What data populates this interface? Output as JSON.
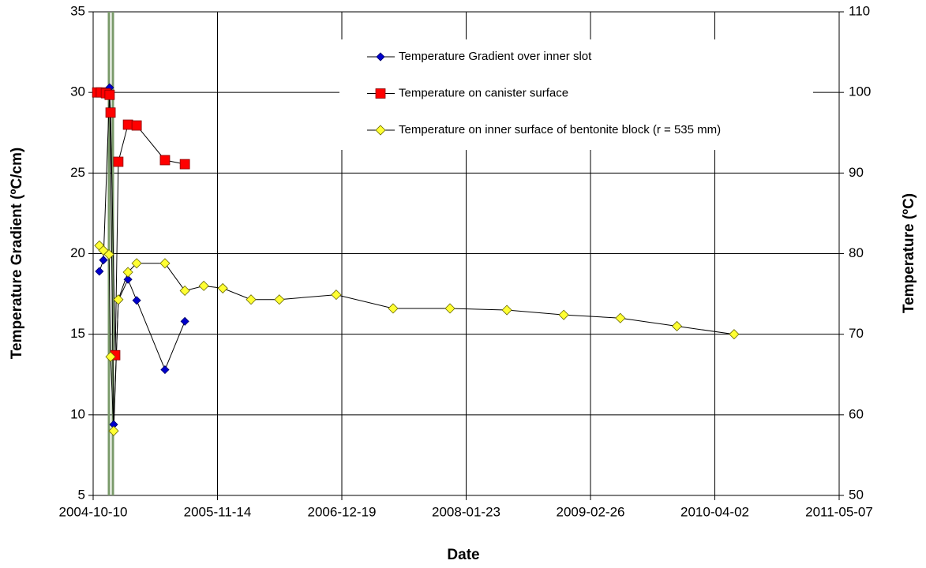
{
  "chart_data": {
    "type": "line",
    "x_label": "Date",
    "y_label": "Temperature Gradient (ºC/cm)",
    "y2_label": "Temperature (ºC)",
    "xlim": [
      "2004-10-10",
      "2011-05-07"
    ],
    "xticks": [
      "2004-10-10",
      "2005-11-14",
      "2006-12-19",
      "2008-01-23",
      "2009-02-26",
      "2010-04-02",
      "2011-05-07"
    ],
    "ylim": [
      5,
      35
    ],
    "yticks": [
      5,
      10,
      15,
      20,
      25,
      30,
      35
    ],
    "y2lim": [
      50,
      110
    ],
    "y2ticks": [
      50,
      60,
      70,
      80,
      90,
      100,
      110
    ],
    "grid": true,
    "legend": "top",
    "series": [
      {
        "name": "Temperature Gradient over inner slot",
        "color": "#0000cc",
        "marker": "diamond",
        "axis": "y",
        "x": [
          "2004-10-30",
          "2004-11-12",
          "2004-12-02",
          "2004-12-15",
          "2004-12-30",
          "2005-01-30",
          "2005-02-27",
          "2005-05-29",
          "2005-08-01"
        ],
        "values": [
          18.9,
          19.6,
          30.3,
          9.4,
          17.1,
          18.4,
          17.1,
          12.8,
          15.8
        ]
      },
      {
        "name": "Temperature on canister surface",
        "color": "#ff0000",
        "marker": "square",
        "axis": "y2",
        "x": [
          "2004-10-23",
          "2004-11-04",
          "2004-11-20",
          "2004-12-02",
          "2004-12-05",
          "2004-12-20",
          "2004-12-30",
          "2005-01-30",
          "2005-02-27",
          "2005-05-29",
          "2005-08-01"
        ],
        "values": [
          100,
          100,
          99.9,
          99.7,
          97.5,
          67.4,
          91.4,
          96.0,
          95.9,
          91.6,
          91.1
        ]
      },
      {
        "name": "Temperature on inner surface of bentonite block (r = 535 mm)",
        "color": "#ffff33",
        "marker": "diamond",
        "axis": "y2",
        "x": [
          "2004-10-30",
          "2004-11-12",
          "2004-11-30",
          "2004-12-05",
          "2004-12-15",
          "2004-12-30",
          "2005-01-30",
          "2005-02-27",
          "2005-05-29",
          "2005-08-01",
          "2005-10-01",
          "2005-12-01",
          "2006-03-02",
          "2006-06-01",
          "2006-12-01",
          "2007-06-02",
          "2007-12-02",
          "2008-06-02",
          "2008-12-02",
          "2009-06-02",
          "2009-12-01",
          "2010-06-03"
        ],
        "values": [
          81.0,
          80.4,
          79.9,
          67.2,
          58.0,
          74.3,
          77.7,
          78.8,
          78.8,
          75.4,
          76.0,
          75.7,
          74.3,
          74.3,
          74.9,
          73.2,
          73.2,
          73.0,
          72.4,
          72.0,
          71.0,
          70.0
        ]
      }
    ]
  }
}
